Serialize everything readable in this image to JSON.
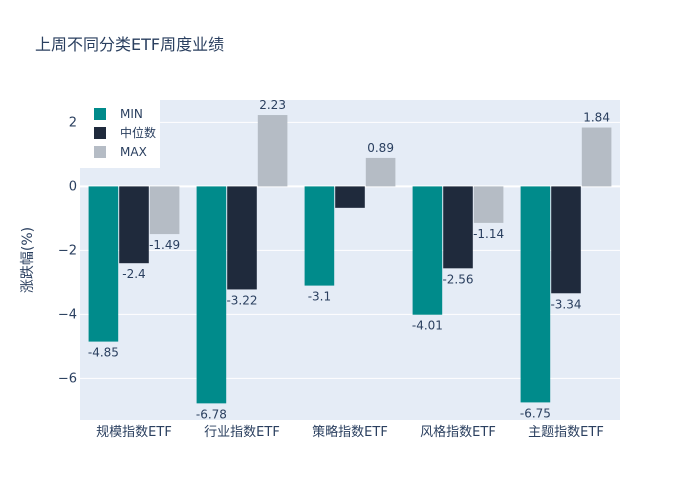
{
  "chart_data": {
    "type": "bar",
    "title": "上周不同分类ETF周度业绩",
    "xlabel": "",
    "ylabel": "涨跌幅(%)",
    "categories": [
      "规模指数ETF",
      "行业指数ETF",
      "策略指数ETF",
      "风格指数ETF",
      "主题指数ETF"
    ],
    "series": [
      {
        "name": "MIN",
        "color": "#008b8b",
        "values": [
          -4.85,
          -6.78,
          -3.1,
          -4.01,
          -6.75
        ],
        "labels": [
          "-4.85",
          "-6.78",
          "-3.1",
          "-4.01",
          "-6.75"
        ]
      },
      {
        "name": "中位数",
        "color": "#1f2a3c",
        "values": [
          -2.4,
          -3.22,
          -0.67,
          -2.56,
          -3.34
        ],
        "labels": [
          "-2.4",
          "-3.22",
          "",
          "-2.56",
          "-3.34"
        ]
      },
      {
        "name": "MAX",
        "color": "#b5bcc5",
        "values": [
          -1.49,
          2.23,
          0.89,
          -1.14,
          1.84
        ],
        "labels": [
          "-1.49",
          "2.23",
          "0.89",
          "-1.14",
          "1.84"
        ]
      }
    ],
    "ylim": [
      -7.3,
      2.7
    ],
    "yticks": [
      -6,
      -4,
      -2,
      0,
      2
    ],
    "ytick_labels": [
      "−6",
      "−4",
      "−2",
      "0",
      "2"
    ],
    "legend_position": "top-left",
    "grid": true,
    "colors": {
      "plot_bg": "#e5ecf6",
      "grid": "#ffffff",
      "text": "#2a3f5f"
    }
  }
}
